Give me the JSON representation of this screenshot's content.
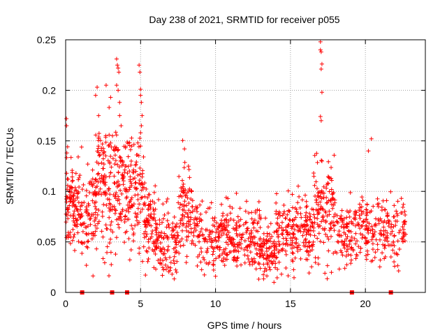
{
  "chart_data": {
    "type": "scatter",
    "title": "Day 238 of 2021, SRMTID for receiver p055",
    "xlabel": "GPS time / hours",
    "ylabel": "SRMTID / TECUs",
    "xlim": [
      0,
      24
    ],
    "ylim": [
      0,
      0.25
    ],
    "x_ticks": [
      0,
      5,
      10,
      15,
      20
    ],
    "x_tick_labels": [
      "0",
      "5",
      "10",
      "15",
      "20"
    ],
    "y_ticks": [
      0,
      0.05,
      0.1,
      0.15,
      0.2,
      0.25
    ],
    "y_tick_labels": [
      "0",
      "0.05",
      "0.1",
      "0.15",
      "0.2",
      "0.25"
    ],
    "grid": true,
    "marker": "+",
    "color": "#ff0000",
    "gap_markers_x": [
      1.1,
      3.1,
      4.1,
      19.1,
      21.7
    ],
    "series": [
      {
        "name": "SRMTID",
        "clusters": [
          {
            "x": [
              0.0,
              1.0
            ],
            "center": 0.085,
            "spread": 0.022,
            "n": 110
          },
          {
            "x": [
              1.0,
              2.0
            ],
            "center": 0.08,
            "spread": 0.02,
            "n": 80
          },
          {
            "x": [
              2.0,
              3.0
            ],
            "center": 0.115,
            "spread": 0.035,
            "n": 110
          },
          {
            "x": [
              3.0,
              4.0
            ],
            "center": 0.105,
            "spread": 0.03,
            "n": 100
          },
          {
            "x": [
              4.0,
              5.2
            ],
            "center": 0.1,
            "spread": 0.03,
            "n": 110
          },
          {
            "x": [
              5.2,
              6.0
            ],
            "center": 0.07,
            "spread": 0.02,
            "n": 80
          },
          {
            "x": [
              6.0,
              7.5
            ],
            "center": 0.05,
            "spread": 0.018,
            "n": 110
          },
          {
            "x": [
              7.5,
              8.5
            ],
            "center": 0.08,
            "spread": 0.025,
            "n": 90
          },
          {
            "x": [
              8.5,
              13.0
            ],
            "center": 0.055,
            "spread": 0.015,
            "n": 320
          },
          {
            "x": [
              13.0,
              14.0
            ],
            "center": 0.04,
            "spread": 0.012,
            "n": 80
          },
          {
            "x": [
              14.0,
              16.5
            ],
            "center": 0.06,
            "spread": 0.016,
            "n": 200
          },
          {
            "x": [
              16.5,
              18.0
            ],
            "center": 0.08,
            "spread": 0.025,
            "n": 130
          },
          {
            "x": [
              18.0,
              22.7
            ],
            "center": 0.06,
            "spread": 0.016,
            "n": 300
          }
        ],
        "outliers": [
          {
            "x": 0.05,
            "y": 0.172
          },
          {
            "x": 0.06,
            "y": 0.165
          },
          {
            "x": 0.08,
            "y": 0.138
          },
          {
            "x": 2.0,
            "y": 0.195
          },
          {
            "x": 2.1,
            "y": 0.203
          },
          {
            "x": 2.2,
            "y": 0.175
          },
          {
            "x": 2.7,
            "y": 0.205
          },
          {
            "x": 2.9,
            "y": 0.183
          },
          {
            "x": 3.0,
            "y": 0.193
          },
          {
            "x": 3.4,
            "y": 0.231
          },
          {
            "x": 3.45,
            "y": 0.225
          },
          {
            "x": 3.5,
            "y": 0.222
          },
          {
            "x": 3.55,
            "y": 0.218
          },
          {
            "x": 3.4,
            "y": 0.205
          },
          {
            "x": 3.5,
            "y": 0.2
          },
          {
            "x": 3.6,
            "y": 0.188
          },
          {
            "x": 3.6,
            "y": 0.175
          },
          {
            "x": 3.7,
            "y": 0.165
          },
          {
            "x": 4.9,
            "y": 0.225
          },
          {
            "x": 4.95,
            "y": 0.218
          },
          {
            "x": 5.0,
            "y": 0.201
          },
          {
            "x": 5.0,
            "y": 0.195
          },
          {
            "x": 5.05,
            "y": 0.188
          },
          {
            "x": 5.1,
            "y": 0.175
          },
          {
            "x": 5.05,
            "y": 0.165
          },
          {
            "x": 5.0,
            "y": 0.158
          },
          {
            "x": 17.0,
            "y": 0.248
          },
          {
            "x": 17.0,
            "y": 0.24
          },
          {
            "x": 17.05,
            "y": 0.238
          },
          {
            "x": 17.1,
            "y": 0.226
          },
          {
            "x": 17.05,
            "y": 0.221
          },
          {
            "x": 17.1,
            "y": 0.198
          },
          {
            "x": 17.0,
            "y": 0.174
          },
          {
            "x": 17.05,
            "y": 0.17
          },
          {
            "x": 17.1,
            "y": 0.13
          },
          {
            "x": 20.4,
            "y": 0.152
          },
          {
            "x": 20.2,
            "y": 0.14
          },
          {
            "x": 7.1,
            "y": 0.018
          },
          {
            "x": 7.4,
            "y": 0.02
          },
          {
            "x": 10.0,
            "y": 0.016
          },
          {
            "x": 13.9,
            "y": 0.01
          },
          {
            "x": 14.4,
            "y": 0.018
          }
        ]
      }
    ]
  }
}
